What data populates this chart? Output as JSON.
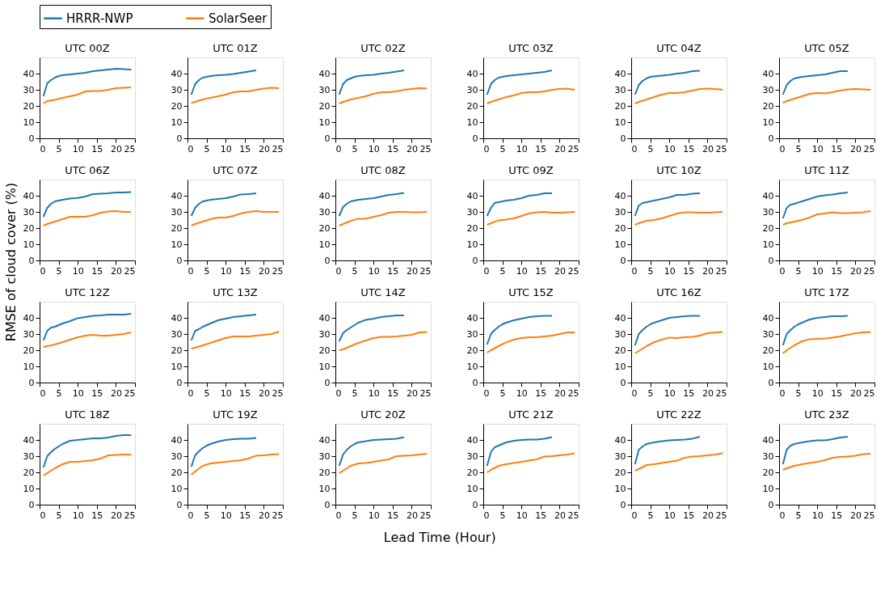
{
  "chart_data": [
    {
      "type": "line",
      "title": "UTC 00Z",
      "legend": "top",
      "xlim": [
        0,
        25
      ],
      "ylim": [
        0,
        50
      ],
      "xticks": [
        0,
        5,
        10,
        15,
        20,
        25
      ],
      "yticks": [
        0,
        10,
        20,
        30,
        40
      ],
      "series": [
        {
          "name": "HRRR-NWP",
          "color": "#1f77b4",
          "x": [
            1,
            2,
            3,
            4,
            5,
            6,
            8,
            10,
            12,
            14,
            16,
            18,
            20,
            22,
            24
          ],
          "values": [
            26,
            34,
            36,
            37.5,
            38.5,
            39,
            39.5,
            40,
            40.5,
            41.5,
            42,
            42.5,
            43,
            42.8,
            42.5
          ]
        },
        {
          "name": "SolarSeer",
          "color": "#ff7f0e",
          "x": [
            1,
            2,
            4,
            6,
            8,
            10,
            12,
            14,
            16,
            18,
            20,
            22,
            24
          ],
          "values": [
            21.5,
            23,
            23.8,
            25,
            26,
            27,
            29,
            29.2,
            29.3,
            30,
            31,
            31.2,
            31.5
          ]
        }
      ]
    },
    {
      "type": "line",
      "title": "UTC 01Z",
      "xlim": [
        0,
        25
      ],
      "ylim": [
        0,
        50
      ],
      "xticks": [
        0,
        5,
        10,
        15,
        20,
        25
      ],
      "yticks": [
        0,
        10,
        20,
        30,
        40
      ],
      "series": [
        {
          "name": "HRRR-NWP",
          "color": "#1f77b4",
          "x": [
            1,
            2,
            3,
            4,
            5,
            6,
            8,
            10,
            12,
            14,
            16,
            18
          ],
          "values": [
            27,
            33.5,
            36,
            37.5,
            38,
            38.5,
            39,
            39.3,
            39.8,
            40.5,
            41.2,
            42
          ]
        },
        {
          "name": "SolarSeer",
          "color": "#ff7f0e",
          "x": [
            1,
            2,
            4,
            6,
            8,
            10,
            12,
            14,
            16,
            18,
            20,
            22,
            24
          ],
          "values": [
            22,
            22.5,
            24,
            25,
            26,
            27,
            28.5,
            29,
            29,
            30,
            30.8,
            31.2,
            31
          ]
        }
      ]
    },
    {
      "type": "line",
      "title": "UTC 02Z",
      "xlim": [
        0,
        25
      ],
      "ylim": [
        0,
        50
      ],
      "xticks": [
        0,
        5,
        10,
        15,
        20,
        25
      ],
      "yticks": [
        0,
        10,
        20,
        30,
        40
      ],
      "series": [
        {
          "name": "HRRR-NWP",
          "color": "#1f77b4",
          "x": [
            1,
            2,
            3,
            4,
            5,
            6,
            8,
            10,
            12,
            14,
            16,
            18
          ],
          "values": [
            27,
            33.5,
            36,
            37,
            38,
            38.5,
            39,
            39.3,
            40,
            40.5,
            41.2,
            42
          ]
        },
        {
          "name": "SolarSeer",
          "color": "#ff7f0e",
          "x": [
            1,
            2,
            4,
            6,
            8,
            10,
            12,
            14,
            16,
            18,
            20,
            22,
            24
          ],
          "values": [
            21.5,
            22.5,
            24,
            25,
            26,
            27.5,
            28.5,
            28.5,
            29,
            30,
            30.5,
            31,
            30.8
          ]
        }
      ]
    },
    {
      "type": "line",
      "title": "UTC 03Z",
      "xlim": [
        0,
        25
      ],
      "ylim": [
        0,
        50
      ],
      "xticks": [
        0,
        5,
        10,
        15,
        20,
        25
      ],
      "yticks": [
        0,
        10,
        20,
        30,
        40
      ],
      "series": [
        {
          "name": "HRRR-NWP",
          "color": "#1f77b4",
          "x": [
            1,
            2,
            3,
            4,
            5,
            6,
            8,
            10,
            12,
            14,
            16,
            18
          ],
          "values": [
            27,
            33.5,
            36,
            37.5,
            38,
            38.5,
            39,
            39.5,
            40,
            40.5,
            41,
            42
          ]
        },
        {
          "name": "SolarSeer",
          "color": "#ff7f0e",
          "x": [
            1,
            2,
            4,
            6,
            8,
            10,
            12,
            14,
            16,
            18,
            20,
            22,
            24
          ],
          "values": [
            21.5,
            22.5,
            24,
            25.5,
            26.5,
            28,
            28.5,
            28.5,
            29,
            30,
            30.5,
            30.8,
            30
          ]
        }
      ]
    },
    {
      "type": "line",
      "title": "UTC 04Z",
      "xlim": [
        0,
        25
      ],
      "ylim": [
        0,
        50
      ],
      "xticks": [
        0,
        5,
        10,
        15,
        20,
        25
      ],
      "yticks": [
        0,
        10,
        20,
        30,
        40
      ],
      "series": [
        {
          "name": "HRRR-NWP",
          "color": "#1f77b4",
          "x": [
            1,
            2,
            3,
            4,
            5,
            6,
            8,
            10,
            12,
            14,
            16,
            18
          ],
          "values": [
            27,
            33,
            35.5,
            37,
            38,
            38.3,
            38.8,
            39.3,
            40,
            40.5,
            41.5,
            41.8
          ]
        },
        {
          "name": "SolarSeer",
          "color": "#ff7f0e",
          "x": [
            1,
            2,
            4,
            6,
            8,
            10,
            12,
            14,
            16,
            18,
            20,
            22,
            24
          ],
          "values": [
            21.5,
            22.5,
            24,
            25.5,
            27,
            28,
            28,
            28.5,
            29.5,
            30.5,
            30.8,
            30.5,
            30
          ]
        }
      ]
    },
    {
      "type": "line",
      "title": "UTC 05Z",
      "xlim": [
        0,
        25
      ],
      "ylim": [
        0,
        50
      ],
      "xticks": [
        0,
        5,
        10,
        15,
        20,
        25
      ],
      "yticks": [
        0,
        10,
        20,
        30,
        40
      ],
      "series": [
        {
          "name": "HRRR-NWP",
          "color": "#1f77b4",
          "x": [
            1,
            2,
            3,
            4,
            5,
            6,
            8,
            10,
            12,
            14,
            16,
            18
          ],
          "values": [
            27,
            33,
            35.5,
            37,
            37.5,
            38,
            38.5,
            39,
            39.5,
            40.5,
            41.5,
            41.5
          ]
        },
        {
          "name": "SolarSeer",
          "color": "#ff7f0e",
          "x": [
            1,
            2,
            4,
            6,
            8,
            10,
            12,
            14,
            16,
            18,
            20,
            22,
            24
          ],
          "values": [
            22,
            23,
            24.5,
            26,
            27.5,
            28,
            27.8,
            28.5,
            29.5,
            30.3,
            30.5,
            30.2,
            30
          ]
        }
      ]
    },
    {
      "type": "line",
      "title": "UTC 06Z",
      "xlim": [
        0,
        25
      ],
      "ylim": [
        0,
        50
      ],
      "xticks": [
        0,
        5,
        10,
        15,
        20,
        25
      ],
      "yticks": [
        0,
        10,
        20,
        30,
        40
      ],
      "series": [
        {
          "name": "HRRR-NWP",
          "color": "#1f77b4",
          "x": [
            1,
            2,
            3,
            4,
            5,
            6,
            8,
            10,
            12,
            14,
            16,
            18,
            20,
            22,
            24
          ],
          "values": [
            27,
            32.5,
            35,
            36.5,
            37,
            37.5,
            38.3,
            38.6,
            39.5,
            41,
            41.3,
            41.5,
            42,
            42,
            42.3
          ]
        },
        {
          "name": "SolarSeer",
          "color": "#ff7f0e",
          "x": [
            1,
            2,
            4,
            6,
            8,
            10,
            12,
            14,
            16,
            18,
            20,
            22,
            24
          ],
          "values": [
            21.5,
            22.5,
            24,
            25.5,
            27,
            27,
            27,
            28,
            29.5,
            30.3,
            30.5,
            30,
            30
          ]
        }
      ]
    },
    {
      "type": "line",
      "title": "UTC 07Z",
      "xlim": [
        0,
        25
      ],
      "ylim": [
        0,
        50
      ],
      "xticks": [
        0,
        5,
        10,
        15,
        20,
        25
      ],
      "yticks": [
        0,
        10,
        20,
        30,
        40
      ],
      "series": [
        {
          "name": "HRRR-NWP",
          "color": "#1f77b4",
          "x": [
            1,
            2,
            3,
            4,
            5,
            6,
            8,
            10,
            12,
            14,
            16,
            18
          ],
          "values": [
            27.5,
            32.5,
            35,
            36.5,
            37,
            37.5,
            38,
            38.5,
            39.5,
            40.8,
            41,
            41.5
          ]
        },
        {
          "name": "SolarSeer",
          "color": "#ff7f0e",
          "x": [
            1,
            2,
            4,
            6,
            8,
            10,
            12,
            14,
            16,
            18,
            20,
            22,
            24
          ],
          "values": [
            21.5,
            22.5,
            24,
            25.5,
            26.5,
            26.5,
            27.5,
            29,
            30,
            30.5,
            30,
            30,
            30
          ]
        }
      ]
    },
    {
      "type": "line",
      "title": "UTC 08Z",
      "xlim": [
        0,
        25
      ],
      "ylim": [
        0,
        50
      ],
      "xticks": [
        0,
        5,
        10,
        15,
        20,
        25
      ],
      "yticks": [
        0,
        10,
        20,
        30,
        40
      ],
      "series": [
        {
          "name": "HRRR-NWP",
          "color": "#1f77b4",
          "x": [
            1,
            2,
            3,
            4,
            5,
            6,
            8,
            10,
            12,
            14,
            16,
            18
          ],
          "values": [
            27.5,
            33,
            35,
            36.5,
            37,
            37.5,
            38,
            38.5,
            39.5,
            40.5,
            41,
            41.8
          ]
        },
        {
          "name": "SolarSeer",
          "color": "#ff7f0e",
          "x": [
            1,
            2,
            4,
            6,
            8,
            10,
            12,
            14,
            16,
            18,
            20,
            22,
            24
          ],
          "values": [
            21.5,
            22.5,
            24.5,
            25.8,
            25.8,
            27,
            28,
            29.5,
            30,
            30,
            29.8,
            29.8,
            30
          ]
        }
      ]
    },
    {
      "type": "line",
      "title": "UTC 09Z",
      "xlim": [
        0,
        25
      ],
      "ylim": [
        0,
        50
      ],
      "xticks": [
        0,
        5,
        10,
        15,
        20,
        25
      ],
      "yticks": [
        0,
        10,
        20,
        30,
        40
      ],
      "series": [
        {
          "name": "HRRR-NWP",
          "color": "#1f77b4",
          "x": [
            1,
            2,
            3,
            4,
            5,
            6,
            8,
            10,
            12,
            14,
            16,
            18
          ],
          "values": [
            27.5,
            32.5,
            35.5,
            36,
            36.5,
            37,
            37.5,
            38.5,
            40,
            40.5,
            41.5,
            41.5
          ]
        },
        {
          "name": "SolarSeer",
          "color": "#ff7f0e",
          "x": [
            1,
            2,
            4,
            6,
            8,
            10,
            12,
            14,
            16,
            18,
            20,
            22,
            24
          ],
          "values": [
            22,
            23,
            24.8,
            25.3,
            26,
            27.5,
            29,
            29.7,
            30,
            29.5,
            29.5,
            29.8,
            30
          ]
        }
      ]
    },
    {
      "type": "line",
      "title": "UTC 10Z",
      "xlim": [
        0,
        25
      ],
      "ylim": [
        0,
        50
      ],
      "xticks": [
        0,
        5,
        10,
        15,
        20,
        25
      ],
      "yticks": [
        0,
        10,
        20,
        30,
        40
      ],
      "series": [
        {
          "name": "HRRR-NWP",
          "color": "#1f77b4",
          "x": [
            1,
            2,
            3,
            4,
            5,
            6,
            8,
            10,
            12,
            14,
            16,
            18
          ],
          "values": [
            27.5,
            34,
            35.5,
            36,
            36.5,
            37,
            38,
            39,
            40.5,
            40.5,
            41.3,
            41.5
          ]
        },
        {
          "name": "SolarSeer",
          "color": "#ff7f0e",
          "x": [
            1,
            2,
            4,
            6,
            8,
            10,
            12,
            14,
            16,
            18,
            20,
            22,
            24
          ],
          "values": [
            22,
            23,
            24.5,
            25,
            26,
            27.5,
            29,
            29.7,
            29.8,
            29.5,
            29.5,
            29.8,
            30
          ]
        }
      ]
    },
    {
      "type": "line",
      "title": "UTC 11Z",
      "xlim": [
        0,
        25
      ],
      "ylim": [
        0,
        50
      ],
      "xticks": [
        0,
        5,
        10,
        15,
        20,
        25
      ],
      "yticks": [
        0,
        10,
        20,
        30,
        40
      ],
      "series": [
        {
          "name": "HRRR-NWP",
          "color": "#1f77b4",
          "x": [
            1,
            2,
            3,
            4,
            5,
            6,
            8,
            10,
            12,
            14,
            16,
            18
          ],
          "values": [
            26,
            32.5,
            34.5,
            35,
            35.8,
            36.5,
            38,
            39.5,
            40.3,
            40.8,
            41.5,
            42
          ]
        },
        {
          "name": "SolarSeer",
          "color": "#ff7f0e",
          "x": [
            1,
            2,
            4,
            6,
            8,
            10,
            12,
            14,
            16,
            18,
            20,
            22,
            24
          ],
          "values": [
            22,
            23,
            24,
            25,
            26.5,
            28.5,
            29,
            29.8,
            29.2,
            29.2,
            29.5,
            29.8,
            30.5
          ]
        }
      ]
    },
    {
      "type": "line",
      "title": "UTC 12Z",
      "ylabel": "RMSE of cloud cover (%)",
      "xlim": [
        0,
        25
      ],
      "ylim": [
        0,
        50
      ],
      "xticks": [
        0,
        5,
        10,
        15,
        20,
        25
      ],
      "yticks": [
        0,
        10,
        20,
        30,
        40
      ],
      "series": [
        {
          "name": "HRRR-NWP",
          "color": "#1f77b4",
          "x": [
            1,
            2,
            3,
            4,
            5,
            6,
            8,
            10,
            12,
            14,
            16,
            18,
            20,
            22,
            24
          ],
          "values": [
            26,
            32,
            34,
            34.5,
            35.5,
            36.5,
            38,
            39.8,
            40.5,
            41.3,
            41.5,
            42,
            42,
            42,
            42.5
          ]
        },
        {
          "name": "SolarSeer",
          "color": "#ff7f0e",
          "x": [
            1,
            2,
            4,
            6,
            8,
            10,
            12,
            14,
            16,
            18,
            20,
            22,
            24
          ],
          "values": [
            22,
            22.5,
            23.5,
            25,
            26.5,
            28,
            29,
            29.5,
            29,
            29,
            29.5,
            30,
            31
          ]
        }
      ]
    },
    {
      "type": "line",
      "title": "UTC 13Z",
      "xlim": [
        0,
        25
      ],
      "ylim": [
        0,
        50
      ],
      "xticks": [
        0,
        5,
        10,
        15,
        20,
        25
      ],
      "yticks": [
        0,
        10,
        20,
        30,
        40
      ],
      "series": [
        {
          "name": "HRRR-NWP",
          "color": "#1f77b4",
          "x": [
            1,
            2,
            3,
            4,
            5,
            6,
            8,
            10,
            12,
            14,
            16,
            18
          ],
          "values": [
            26,
            32,
            33,
            34.5,
            35.5,
            36.5,
            38.5,
            39.5,
            40.5,
            41,
            41.5,
            42
          ]
        },
        {
          "name": "SolarSeer",
          "color": "#ff7f0e",
          "x": [
            1,
            2,
            4,
            6,
            8,
            10,
            12,
            14,
            16,
            18,
            20,
            22,
            24
          ],
          "values": [
            21,
            21.5,
            23,
            24.5,
            26,
            27.5,
            28.5,
            28.5,
            28.5,
            29,
            29.5,
            30,
            31.5
          ]
        }
      ]
    },
    {
      "type": "line",
      "title": "UTC 14Z",
      "xlim": [
        0,
        25
      ],
      "ylim": [
        0,
        50
      ],
      "xticks": [
        0,
        5,
        10,
        15,
        20,
        25
      ],
      "yticks": [
        0,
        10,
        20,
        30,
        40
      ],
      "series": [
        {
          "name": "HRRR-NWP",
          "color": "#1f77b4",
          "x": [
            1,
            2,
            3,
            4,
            5,
            6,
            8,
            10,
            12,
            14,
            16,
            18
          ],
          "values": [
            25.5,
            30.5,
            32.5,
            34,
            35.5,
            37,
            38.8,
            39.5,
            40.5,
            41,
            41.5,
            41.5
          ]
        },
        {
          "name": "SolarSeer",
          "color": "#ff7f0e",
          "x": [
            1,
            2,
            4,
            6,
            8,
            10,
            12,
            14,
            16,
            18,
            20,
            22,
            24
          ],
          "values": [
            20,
            20.5,
            22.5,
            24.5,
            26,
            27.5,
            28.3,
            28.2,
            28.5,
            29,
            29.5,
            31,
            31.2
          ]
        }
      ]
    },
    {
      "type": "line",
      "title": "UTC 15Z",
      "xlim": [
        0,
        25
      ],
      "ylim": [
        0,
        50
      ],
      "xticks": [
        0,
        5,
        10,
        15,
        20,
        25
      ],
      "yticks": [
        0,
        10,
        20,
        30,
        40
      ],
      "series": [
        {
          "name": "HRRR-NWP",
          "color": "#1f77b4",
          "x": [
            1,
            2,
            3,
            4,
            5,
            6,
            8,
            10,
            12,
            14,
            16,
            18
          ],
          "values": [
            23.5,
            30,
            32.5,
            34.5,
            36,
            37,
            38.5,
            39.5,
            40.5,
            41,
            41.3,
            41.3
          ]
        },
        {
          "name": "SolarSeer",
          "color": "#ff7f0e",
          "x": [
            1,
            2,
            4,
            6,
            8,
            10,
            12,
            14,
            16,
            18,
            20,
            22,
            24
          ],
          "values": [
            18.5,
            20,
            22.5,
            24.8,
            26.5,
            27.5,
            28,
            28,
            28.5,
            29,
            30,
            31,
            31
          ]
        }
      ]
    },
    {
      "type": "line",
      "title": "UTC 16Z",
      "xlim": [
        0,
        25
      ],
      "ylim": [
        0,
        50
      ],
      "xticks": [
        0,
        5,
        10,
        15,
        20,
        25
      ],
      "yticks": [
        0,
        10,
        20,
        30,
        40
      ],
      "series": [
        {
          "name": "HRRR-NWP",
          "color": "#1f77b4",
          "x": [
            1,
            2,
            3,
            4,
            5,
            6,
            8,
            10,
            12,
            14,
            16,
            18
          ],
          "values": [
            23,
            30,
            32.5,
            34.5,
            36,
            37,
            38.5,
            40,
            40.5,
            41,
            41.2,
            41.3
          ]
        },
        {
          "name": "SolarSeer",
          "color": "#ff7f0e",
          "x": [
            1,
            2,
            4,
            6,
            8,
            10,
            12,
            14,
            16,
            18,
            20,
            22,
            24
          ],
          "values": [
            18,
            19.5,
            22.5,
            25,
            26.5,
            27.8,
            27.5,
            28,
            28.3,
            29,
            30.5,
            31,
            31.3
          ]
        }
      ]
    },
    {
      "type": "line",
      "title": "UTC 17Z",
      "xlim": [
        0,
        25
      ],
      "ylim": [
        0,
        50
      ],
      "xticks": [
        0,
        5,
        10,
        15,
        20,
        25
      ],
      "yticks": [
        0,
        10,
        20,
        30,
        40
      ],
      "series": [
        {
          "name": "HRRR-NWP",
          "color": "#1f77b4",
          "x": [
            1,
            2,
            3,
            4,
            5,
            6,
            8,
            10,
            12,
            14,
            16,
            18
          ],
          "values": [
            23,
            30,
            32.5,
            34.5,
            36,
            37,
            39,
            40,
            40.5,
            41,
            41,
            41.2
          ]
        },
        {
          "name": "SolarSeer",
          "color": "#ff7f0e",
          "x": [
            1,
            2,
            4,
            6,
            8,
            10,
            12,
            14,
            16,
            18,
            20,
            22,
            24
          ],
          "values": [
            18,
            20,
            23,
            25.5,
            26.8,
            27,
            27.2,
            27.8,
            28.5,
            29.5,
            30.5,
            31,
            31.3
          ]
        }
      ]
    },
    {
      "type": "line",
      "title": "UTC 18Z",
      "xlim": [
        0,
        25
      ],
      "ylim": [
        0,
        50
      ],
      "xticks": [
        0,
        5,
        10,
        15,
        20,
        25
      ],
      "yticks": [
        0,
        10,
        20,
        30,
        40
      ],
      "series": [
        {
          "name": "HRRR-NWP",
          "color": "#1f77b4",
          "x": [
            1,
            2,
            3,
            4,
            5,
            6,
            8,
            10,
            12,
            14,
            16,
            18,
            20,
            22,
            24
          ],
          "values": [
            23,
            30,
            32.5,
            34.5,
            36,
            37.5,
            39.5,
            40,
            40.5,
            41,
            41,
            41.5,
            42.5,
            43,
            43
          ]
        },
        {
          "name": "SolarSeer",
          "color": "#ff7f0e",
          "x": [
            1,
            2,
            4,
            6,
            8,
            10,
            12,
            14,
            16,
            18,
            20,
            22,
            24
          ],
          "values": [
            18,
            19.5,
            22.5,
            25,
            26.5,
            26.5,
            27,
            27.5,
            28.5,
            30.5,
            30.8,
            31,
            31
          ]
        }
      ]
    },
    {
      "type": "line",
      "title": "UTC 19Z",
      "xlim": [
        0,
        25
      ],
      "ylim": [
        0,
        50
      ],
      "xticks": [
        0,
        5,
        10,
        15,
        20,
        25
      ],
      "yticks": [
        0,
        10,
        20,
        30,
        40
      ],
      "series": [
        {
          "name": "HRRR-NWP",
          "color": "#1f77b4",
          "x": [
            1,
            2,
            3,
            4,
            5,
            6,
            8,
            10,
            12,
            14,
            16,
            18
          ],
          "values": [
            23.5,
            30.5,
            33,
            35,
            36.5,
            37.5,
            39,
            40,
            40.5,
            40.7,
            40.8,
            41.3
          ]
        },
        {
          "name": "SolarSeer",
          "color": "#ff7f0e",
          "x": [
            1,
            2,
            4,
            6,
            8,
            10,
            12,
            14,
            16,
            18,
            20,
            22,
            24
          ],
          "values": [
            18.5,
            20.5,
            24,
            25.5,
            26,
            26.5,
            27,
            27.5,
            28.5,
            30.3,
            30.5,
            31,
            31.3
          ]
        }
      ]
    },
    {
      "type": "line",
      "title": "UTC 20Z",
      "xlabel": "Lead Time (Hour)",
      "xlim": [
        0,
        25
      ],
      "ylim": [
        0,
        50
      ],
      "xticks": [
        0,
        5,
        10,
        15,
        20,
        25
      ],
      "yticks": [
        0,
        10,
        20,
        30,
        40
      ],
      "series": [
        {
          "name": "HRRR-NWP",
          "color": "#1f77b4",
          "x": [
            1,
            2,
            3,
            4,
            5,
            6,
            8,
            10,
            12,
            14,
            16,
            18
          ],
          "values": [
            24,
            31,
            34,
            36,
            37.5,
            38.5,
            39.3,
            40,
            40.3,
            40.5,
            40.8,
            41.8
          ]
        },
        {
          "name": "SolarSeer",
          "color": "#ff7f0e",
          "x": [
            1,
            2,
            4,
            6,
            8,
            10,
            12,
            14,
            16,
            18,
            20,
            22,
            24
          ],
          "values": [
            19.5,
            21,
            24,
            25.5,
            25.8,
            26.5,
            27.2,
            28,
            30,
            30.3,
            30.5,
            31,
            31.5
          ]
        }
      ]
    },
    {
      "type": "line",
      "title": "UTC 21Z",
      "xlim": [
        0,
        25
      ],
      "ylim": [
        0,
        50
      ],
      "xticks": [
        0,
        5,
        10,
        15,
        20,
        25
      ],
      "yticks": [
        0,
        10,
        20,
        30,
        40
      ],
      "series": [
        {
          "name": "HRRR-NWP",
          "color": "#1f77b4",
          "x": [
            1,
            2,
            3,
            4,
            5,
            6,
            8,
            10,
            12,
            14,
            16,
            18
          ],
          "values": [
            24,
            32.5,
            35.5,
            36.5,
            37.5,
            38.5,
            39.5,
            40,
            40.2,
            40.3,
            40.8,
            41.8
          ]
        },
        {
          "name": "SolarSeer",
          "color": "#ff7f0e",
          "x": [
            1,
            2,
            4,
            6,
            8,
            10,
            12,
            14,
            16,
            18,
            20,
            22,
            24
          ],
          "values": [
            20,
            21.5,
            24,
            25,
            25.8,
            26.5,
            27.2,
            28,
            29.8,
            30,
            30.5,
            31,
            31.8
          ]
        }
      ]
    },
    {
      "type": "line",
      "title": "UTC 22Z",
      "xlim": [
        0,
        25
      ],
      "ylim": [
        0,
        50
      ],
      "xticks": [
        0,
        5,
        10,
        15,
        20,
        25
      ],
      "yticks": [
        0,
        10,
        20,
        30,
        40
      ],
      "series": [
        {
          "name": "HRRR-NWP",
          "color": "#1f77b4",
          "x": [
            1,
            2,
            3,
            4,
            5,
            6,
            8,
            10,
            12,
            14,
            16,
            18
          ],
          "values": [
            25,
            34,
            36,
            37.5,
            38,
            38.5,
            39.3,
            39.8,
            40,
            40.2,
            40.8,
            42
          ]
        },
        {
          "name": "SolarSeer",
          "color": "#ff7f0e",
          "x": [
            1,
            2,
            4,
            6,
            8,
            10,
            12,
            14,
            16,
            18,
            20,
            22,
            24
          ],
          "values": [
            21,
            22,
            24.5,
            25,
            25.7,
            26.5,
            27.2,
            29,
            29.7,
            30,
            30.5,
            31,
            31.7
          ]
        }
      ]
    },
    {
      "type": "line",
      "title": "UTC 23Z",
      "xlim": [
        0,
        25
      ],
      "ylim": [
        0,
        50
      ],
      "xticks": [
        0,
        5,
        10,
        15,
        20,
        25
      ],
      "yticks": [
        0,
        10,
        20,
        30,
        40
      ],
      "series": [
        {
          "name": "HRRR-NWP",
          "color": "#1f77b4",
          "x": [
            1,
            2,
            3,
            4,
            5,
            6,
            8,
            10,
            12,
            14,
            16,
            18
          ],
          "values": [
            25,
            34,
            36.5,
            37.5,
            38,
            38.5,
            39.3,
            39.7,
            39.8,
            40.5,
            41.5,
            42
          ]
        },
        {
          "name": "SolarSeer",
          "color": "#ff7f0e",
          "x": [
            1,
            2,
            4,
            6,
            8,
            10,
            12,
            14,
            16,
            18,
            20,
            22,
            24
          ],
          "values": [
            21.5,
            22.5,
            24,
            25,
            25.8,
            26.5,
            27.5,
            29,
            29.5,
            29.8,
            30.2,
            31.2,
            31.5
          ]
        }
      ]
    }
  ]
}
